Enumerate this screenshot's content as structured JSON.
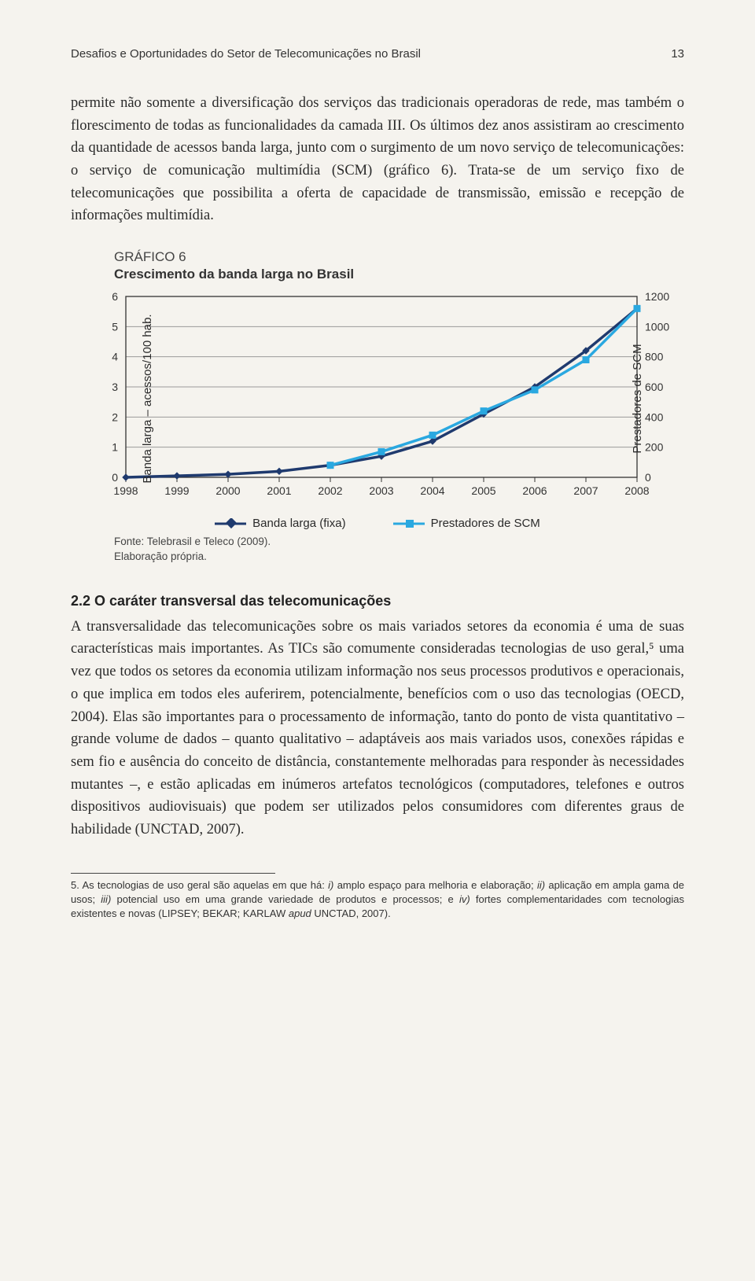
{
  "header": {
    "running_title": "Desafios e Oportunidades do Setor de Telecomunicações no Brasil",
    "page_number": "13"
  },
  "paragraph1": "permite não somente a diversificação dos serviços das tradicionais operadoras de rede, mas também o florescimento de todas as funcionalidades da camada III. Os últimos dez anos assistiram ao crescimento da quantidade de acessos banda larga, junto com o surgimento de um novo serviço de telecomunicações: o serviço de comunicação multimídia (SCM) (gráfico 6). Trata-se de um serviço fixo de telecomunicações que possibilita a oferta de capacidade de transmissão, emissão e recepção de informações multimídia.",
  "chart": {
    "label": "GRÁFICO 6",
    "title": "Crescimento da banda larga no Brasil",
    "type": "line",
    "x_categories": [
      "1998",
      "1999",
      "2000",
      "2001",
      "2002",
      "2003",
      "2004",
      "2005",
      "2006",
      "2007",
      "2008"
    ],
    "y_left": {
      "title": "Banda larga – acessos/100 hab.",
      "min": 0,
      "max": 6,
      "ticks": [
        0,
        1,
        2,
        3,
        4,
        5,
        6
      ]
    },
    "y_right": {
      "title": "Prestadores de SCM",
      "min": 0,
      "max": 1200,
      "ticks": [
        0,
        200,
        400,
        600,
        800,
        1000,
        1200
      ]
    },
    "series": [
      {
        "name": "Banda larga (fixa)",
        "axis": "left",
        "color": "#1f3a6e",
        "marker": "diamond",
        "values": [
          0,
          0.05,
          0.1,
          0.2,
          0.4,
          0.7,
          1.2,
          2.1,
          3.0,
          4.2,
          5.6
        ]
      },
      {
        "name": "Prestadores de SCM",
        "axis": "right",
        "color": "#2aa8e0",
        "marker": "square",
        "values": [
          null,
          null,
          null,
          null,
          80,
          170,
          280,
          440,
          580,
          780,
          1120
        ]
      }
    ],
    "plot": {
      "background": "#f5f3ee",
      "grid_color": "#9a9a9a",
      "axis_color": "#333333",
      "line_width": 3.5,
      "marker_size": 8,
      "tick_fontsize": 14
    },
    "legend": {
      "items": [
        "Banda larga (fixa)",
        "Prestadores de SCM"
      ]
    },
    "source_line1": "Fonte: Telebrasil e Teleco (2009).",
    "source_line2": "Elaboração própria."
  },
  "section": {
    "heading": "2.2 O caráter transversal das telecomunicações",
    "body": "A transversalidade das telecomunicações sobre os mais variados setores da economia é uma de suas características mais importantes. As TICs são comumente consideradas tecnologias de uso geral,⁵ uma vez que todos os setores da economia utilizam informação nos seus processos produtivos e operacionais, o que implica em todos eles auferirem, potencialmente, benefícios com o uso das tecnologias (OECD, 2004). Elas são importantes para o processamento de informação, tanto do ponto de vista quantitativo – grande volume de dados – quanto qualitativo – adaptáveis aos mais variados usos, conexões rápidas e sem fio e ausência do conceito de distância, constantemente melhoradas para responder às necessidades mutantes –, e estão aplicadas em inúmeros artefatos tecnológicos (computadores, telefones e outros dispositivos audiovisuais) que podem ser utilizados pelos consumidores com diferentes graus de habilidade (UNCTAD, 2007)."
  },
  "footnote": {
    "number": "5.",
    "text": "As tecnologias de uso geral são aquelas em que há: i) amplo espaço para melhoria e elaboração; ii) aplicação em ampla gama de usos; iii) potencial uso em uma grande variedade de produtos e processos; e iv) fortes complementaridades com tecnologias existentes e novas (LIPSEY; BEKAR; KARLAW apud UNCTAD, 2007)."
  }
}
